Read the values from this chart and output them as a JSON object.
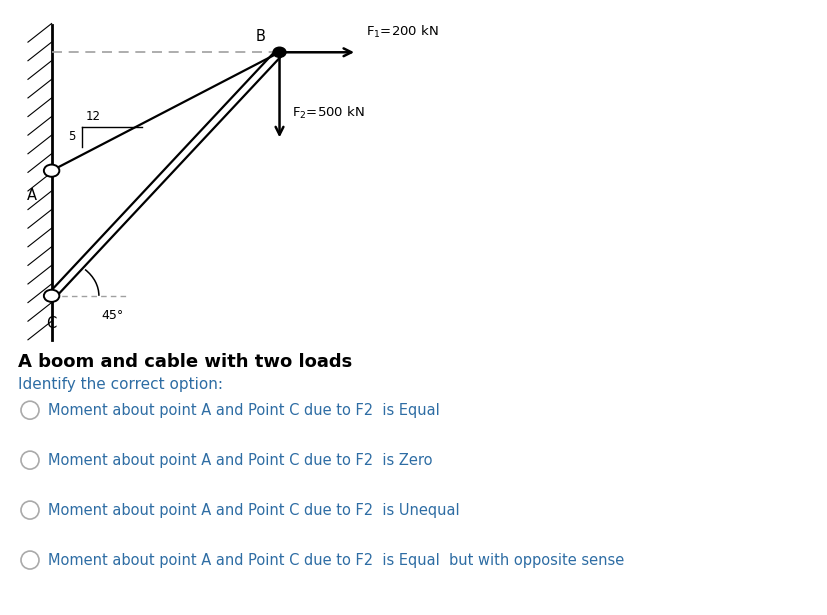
{
  "bg_color": "#ffffff",
  "fig_width": 8.27,
  "fig_height": 6.15,
  "dpi": 100,
  "line_color": "#000000",
  "dash_color": "#a0a0a0",
  "text_color_diagram": "#000000",
  "text_color_options": "#2e6da4",
  "title_color": "#000000",
  "question_color": "#2e6da4",
  "radio_color": "#aaaaaa",
  "F1_label": "F$_1$=200 kN",
  "F2_label": "F$_2$=500 kN",
  "ratio_label_12": "12",
  "ratio_label_5": "5",
  "angle_label": "45°",
  "diagram_title": "A boom and cable with two loads",
  "question_text": "Identify the correct option:",
  "options": [
    "Moment about point A and Point C due to F2  is Equal",
    "Moment about point A and Point C due to F2  is Zero",
    "Moment about point A and Point C due to F2  is Unequal",
    "Moment about point A and Point C due to F2  is Equal  but with opposite sense"
  ]
}
